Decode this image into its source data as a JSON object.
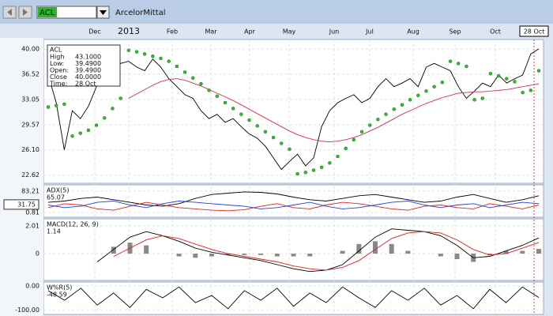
{
  "toolbar": {
    "symbol": "ACL",
    "name": "ArcelorMittal"
  },
  "chart_data": [
    {
      "type": "line",
      "x_labels": [
        "Dec",
        "2013",
        "Feb",
        "Mar",
        "Apr",
        "May",
        "Jun",
        "Jul",
        "Aug",
        "Sep",
        "Oct",
        "28 Oct"
      ],
      "info_box": {
        "title": "ACL",
        "rows": [
          [
            "High",
            "43.1000"
          ],
          [
            "Low:",
            "39.4900"
          ],
          [
            "Open:",
            "39.4900"
          ],
          [
            "Close",
            "40.0000"
          ],
          [
            "Time:",
            "28 Oct"
          ]
        ]
      },
      "ylim": [
        21.5,
        41.3
      ],
      "yticks": [
        {
          "value": 40,
          "label": "40.00"
        },
        {
          "value": 36.52,
          "label": "36.52"
        },
        {
          "value": 33.05,
          "label": "33.05"
        },
        {
          "value": 29.57,
          "label": "29.57"
        },
        {
          "value": 26.1,
          "label": "26.10"
        },
        {
          "value": 22.62,
          "label": "22.62"
        }
      ],
      "grid": true,
      "series": [
        {
          "type": "line",
          "color": "#000000",
          "values": [
            36.4,
            32.6,
            26.1,
            31.5,
            30.4,
            32.1,
            34.8,
            35.9,
            36.4,
            38.0,
            38.3,
            37.5,
            37.0,
            38.6,
            37.5,
            35.9,
            34.8,
            33.7,
            33.2,
            31.5,
            30.4,
            31.0,
            29.9,
            30.4,
            29.3,
            28.3,
            27.7,
            26.6,
            25.0,
            23.4,
            24.5,
            25.5,
            23.9,
            25.0,
            29.3,
            31.5,
            32.6,
            33.2,
            33.7,
            32.6,
            33.2,
            34.8,
            35.9,
            34.8,
            35.3,
            35.9,
            34.8,
            37.5,
            38.0,
            37.5,
            37.0,
            34.8,
            33.2,
            34.2,
            35.3,
            34.8,
            36.4,
            35.3,
            35.9,
            36.4,
            39.3,
            40.0
          ]
        },
        {
          "type": "line",
          "color": "#d0304a",
          "values": [
            null,
            null,
            null,
            null,
            null,
            null,
            null,
            null,
            null,
            null,
            33.2,
            33.8,
            34.4,
            35.0,
            35.5,
            35.8,
            35.9,
            35.7,
            35.3,
            34.9,
            34.4,
            33.9,
            33.4,
            32.9,
            32.3,
            31.7,
            31.1,
            30.5,
            29.9,
            29.3,
            28.7,
            28.2,
            27.8,
            27.5,
            27.3,
            27.2,
            27.3,
            27.5,
            27.8,
            28.2,
            28.7,
            29.2,
            29.8,
            30.4,
            31.0,
            31.5,
            32.0,
            32.5,
            32.9,
            33.3,
            33.6,
            33.9,
            34.0,
            34.1,
            34.1,
            34.2,
            34.3,
            34.4,
            34.6,
            34.8,
            35.0,
            35.2
          ]
        },
        {
          "type": "scatter",
          "color": "#33bb33",
          "values": [
            32.0,
            32.2,
            32.4,
            28.0,
            28.4,
            28.8,
            29.5,
            30.5,
            31.8,
            33.2,
            39.8,
            39.6,
            39.3,
            39.0,
            38.7,
            38.3,
            37.6,
            36.8,
            36.0,
            35.2,
            34.3,
            33.5,
            32.6,
            31.8,
            31.0,
            30.2,
            29.4,
            28.6,
            27.8,
            27.0,
            26.2,
            22.8,
            23.0,
            23.3,
            23.7,
            24.3,
            25.2,
            26.3,
            27.5,
            28.6,
            29.5,
            30.3,
            31.0,
            31.7,
            32.3,
            33.0,
            33.6,
            34.2,
            34.8,
            35.4,
            38.3,
            38.0,
            37.6,
            33.0,
            33.2,
            36.6,
            36.3,
            35.9,
            35.5,
            34.0,
            34.3,
            37.0
          ]
        }
      ]
    },
    {
      "type": "line",
      "indicator": "ADX(5)",
      "readout": 65.07,
      "current_value": 31.75,
      "ylim": [
        -16.8,
        106.7
      ],
      "yticks": [
        83.21,
        0.81
      ],
      "grid": true,
      "series": [
        {
          "type": "line",
          "color": "#000000",
          "values": [
            40,
            45,
            55,
            60,
            50,
            40,
            30,
            25,
            35,
            55,
            70,
            75,
            80,
            78,
            72,
            60,
            50,
            45,
            55,
            65,
            70,
            60,
            50,
            40,
            45,
            60,
            70,
            55,
            40,
            50,
            65.07
          ]
        },
        {
          "type": "line",
          "color": "#e02020",
          "values": [
            20,
            35,
            30,
            15,
            10,
            25,
            40,
            30,
            20,
            15,
            10,
            8,
            12,
            25,
            35,
            20,
            15,
            30,
            40,
            35,
            25,
            15,
            10,
            25,
            30,
            20,
            15,
            35,
            25,
            15,
            30
          ]
        },
        {
          "type": "line",
          "color": "#2040e0",
          "values": [
            30,
            20,
            25,
            40,
            45,
            30,
            20,
            35,
            45,
            40,
            35,
            30,
            25,
            15,
            20,
            30,
            40,
            25,
            15,
            20,
            30,
            40,
            45,
            30,
            20,
            30,
            35,
            20,
            30,
            40,
            35
          ]
        }
      ]
    },
    {
      "type": "line",
      "indicator": "MACD(12, 26, 9)",
      "readout": 1.14,
      "ylim": [
        -1.95,
        2.53
      ],
      "yticks": [
        2.01,
        0
      ],
      "grid": true,
      "series": [
        {
          "type": "bar",
          "color": "#888888",
          "values": [
            null,
            null,
            null,
            null,
            0.5,
            0.8,
            0.6,
            0.0,
            -0.2,
            -0.3,
            -0.2,
            -0.1,
            -0.1,
            -0.1,
            -0.2,
            -0.2,
            -0.2,
            0.0,
            0.2,
            0.7,
            0.9,
            0.7,
            0.2,
            0.0,
            -0.2,
            -0.4,
            -0.6,
            -0.1,
            0.2,
            0.2,
            0.34
          ]
        },
        {
          "type": "line",
          "color": "#000000",
          "values": [
            null,
            null,
            null,
            -0.6,
            0.3,
            1.2,
            1.6,
            1.3,
            0.9,
            0.4,
            0.1,
            -0.1,
            -0.3,
            -0.5,
            -0.8,
            -1.1,
            -1.3,
            -1.2,
            -0.8,
            0.2,
            1.2,
            1.8,
            1.7,
            1.6,
            1.3,
            0.6,
            -0.3,
            -0.2,
            0.2,
            0.6,
            1.14
          ]
        },
        {
          "type": "line",
          "color": "#e02020",
          "values": [
            null,
            null,
            null,
            null,
            -0.2,
            0.4,
            1.0,
            1.3,
            1.1,
            0.7,
            0.3,
            0.0,
            -0.2,
            -0.4,
            -0.6,
            -0.9,
            -1.1,
            -1.2,
            -1.0,
            -0.5,
            0.3,
            1.1,
            1.5,
            1.6,
            1.5,
            1.0,
            0.3,
            -0.1,
            0.0,
            0.4,
            0.8
          ]
        }
      ]
    },
    {
      "type": "line",
      "indicator": "W%R(5)",
      "readout": -48.59,
      "ylim": [
        -118.75,
        15.6
      ],
      "yticks": [
        {
          "value": 0,
          "label": "0.00"
        },
        {
          "value": -100,
          "label": "-100.00"
        }
      ],
      "grid": true,
      "series": [
        {
          "type": "line",
          "color": "#000000",
          "values": [
            -20,
            -60,
            -10,
            -80,
            -30,
            -90,
            -15,
            -50,
            -5,
            -70,
            -40,
            -95,
            -20,
            -60,
            -10,
            -85,
            -30,
            -70,
            -5,
            -50,
            -90,
            -20,
            -60,
            -10,
            -80,
            -40,
            -95,
            -15,
            -70,
            -5,
            -48.59
          ]
        }
      ]
    }
  ]
}
